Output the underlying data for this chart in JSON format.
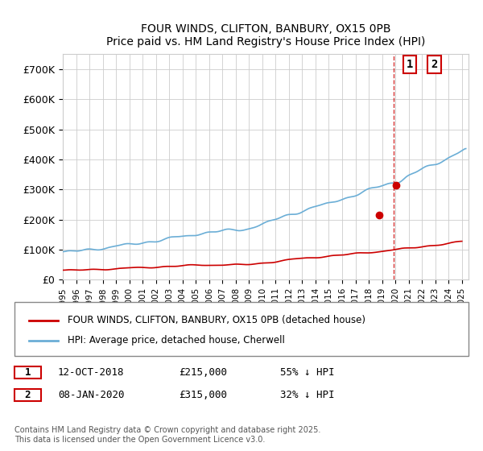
{
  "title": "FOUR WINDS, CLIFTON, BANBURY, OX15 0PB",
  "subtitle": "Price paid vs. HM Land Registry's House Price Index (HPI)",
  "legend_line1": "FOUR WINDS, CLIFTON, BANBURY, OX15 0PB (detached house)",
  "legend_line2": "HPI: Average price, detached house, Cherwell",
  "annotation1_label": "1",
  "annotation1_date": "12-OCT-2018",
  "annotation1_price": "£215,000",
  "annotation1_hpi": "55% ↓ HPI",
  "annotation2_label": "2",
  "annotation2_date": "08-JAN-2020",
  "annotation2_price": "£315,000",
  "annotation2_hpi": "32% ↓ HPI",
  "footnote": "Contains HM Land Registry data © Crown copyright and database right 2025.\nThis data is licensed under the Open Government Licence v3.0.",
  "hpi_color": "#6baed6",
  "price_color": "#cc0000",
  "vline_color": "#cc0000",
  "annotation_box_color": "#cc0000",
  "ylim": [
    0,
    750000
  ],
  "yticks": [
    0,
    100000,
    200000,
    300000,
    400000,
    500000,
    600000,
    700000
  ],
  "xlim_start": 1995.0,
  "xlim_end": 2025.5,
  "marker1_x": 2018.79,
  "marker1_y": 215000,
  "marker2_x": 2020.03,
  "marker2_y": 315000,
  "vline_x": 2019.9
}
